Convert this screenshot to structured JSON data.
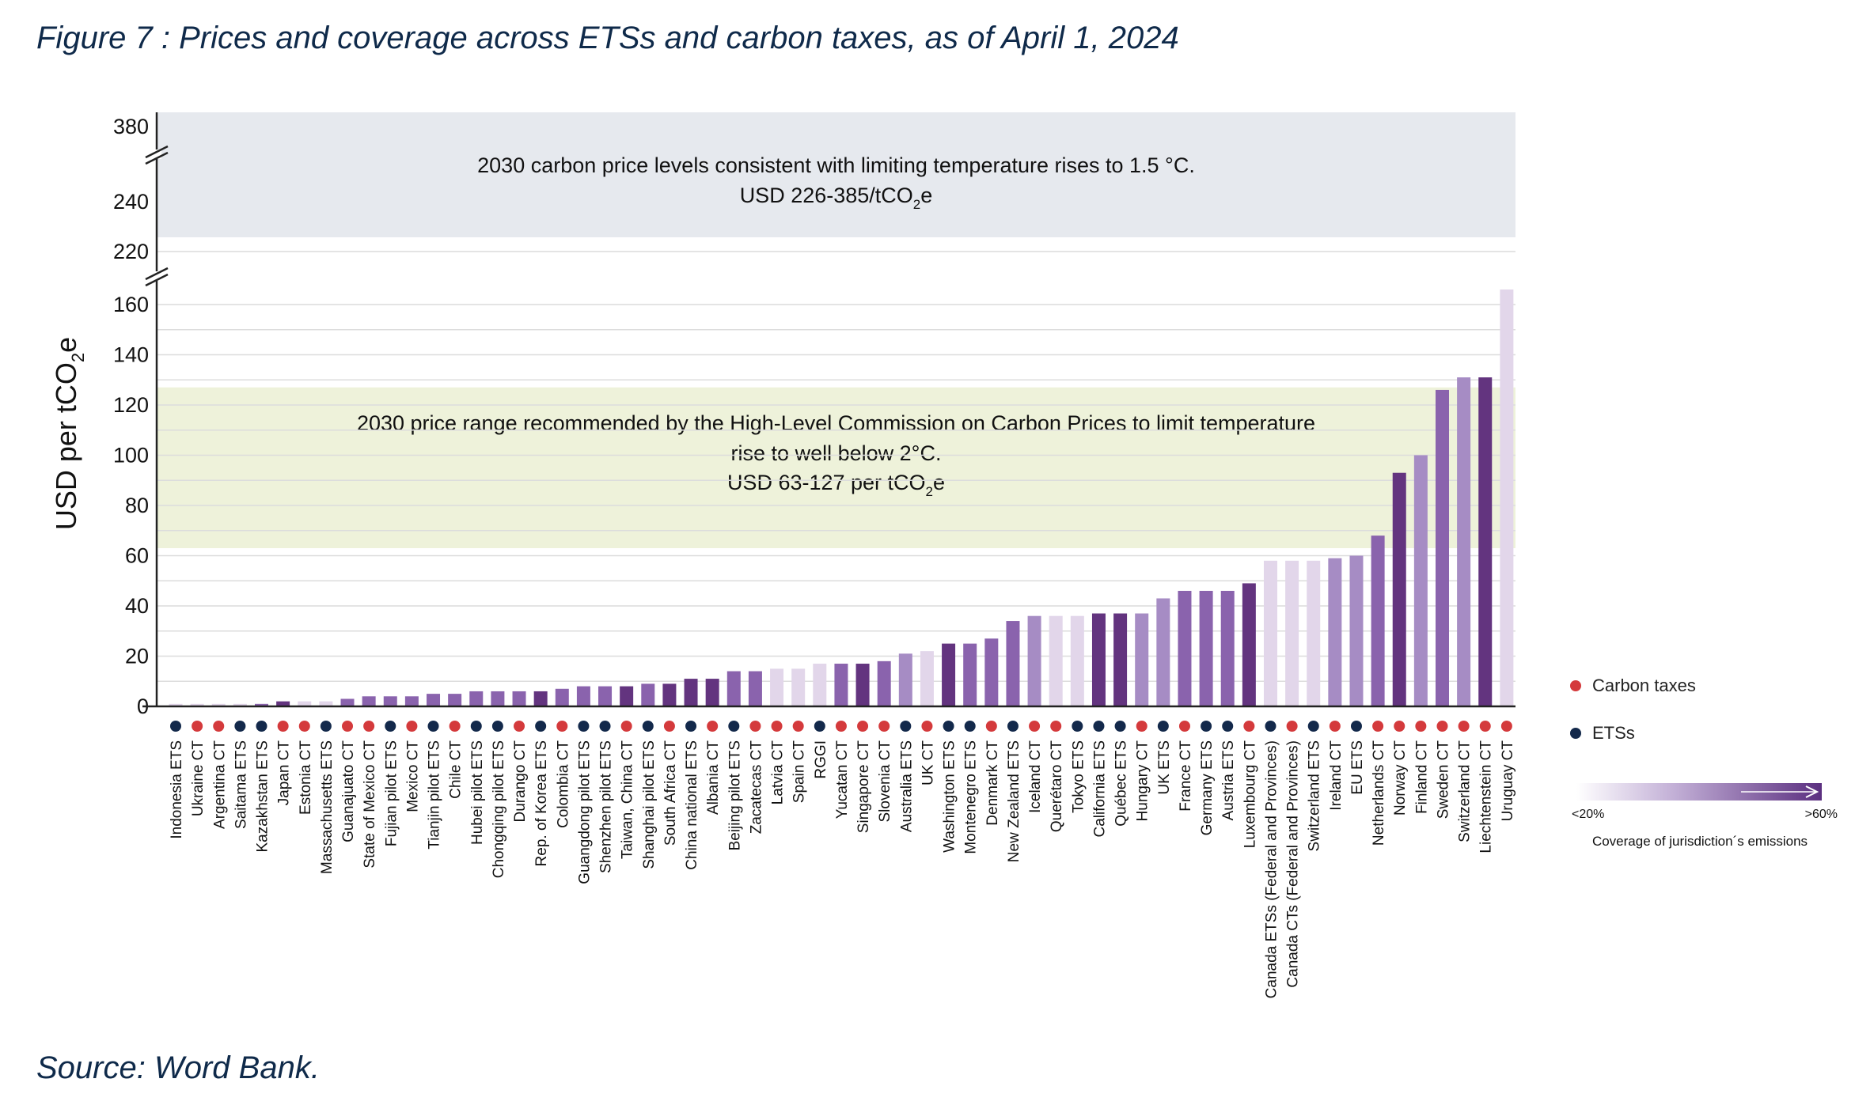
{
  "figure": {
    "title": "Figure 7 : Prices and coverage across ETSs and carbon taxes, as of April 1, 2024",
    "source": "Source: Word Bank."
  },
  "legend": {
    "carbon_taxes": "Carbon taxes",
    "etss": "ETSs",
    "gradient_min": "<20%",
    "gradient_max": ">60%",
    "gradient_caption": "Coverage of jurisdiction´s emissions"
  },
  "colors": {
    "carbon_tax_dot": "#d43a3c",
    "ets_dot": "#13294b",
    "band_top": "#e6e9ee",
    "band_mid": "#eef2da",
    "coverage_low": "#e2d6ea",
    "coverage_mid": "#a68cc4",
    "coverage_high_mid": "#8a63ad",
    "coverage_high": "#63347f"
  },
  "chart_data": {
    "type": "bar",
    "title": "Prices and coverage across ETSs and carbon taxes, as of April 1, 2024",
    "xlabel": "",
    "ylabel": "USD per tCO2e",
    "ylabel_main": "USD per tCO",
    "ylabel_sub": "2",
    "ylabel_tail": "e",
    "ylim": [
      0,
      165
    ],
    "yticks": [
      0,
      20,
      40,
      60,
      80,
      100,
      120,
      140,
      160
    ],
    "upper_ticks": [
      220,
      240,
      380
    ],
    "bands": [
      {
        "name": "1.5C",
        "range": [
          226,
          385
        ],
        "line1": "2030 carbon price levels consistent with limiting temperature rises to 1.5 °C.",
        "line2_main": "USD 226-385/tCO",
        "line2_sub": "2",
        "line2_tail": "e"
      },
      {
        "name": "2C",
        "range": [
          63,
          127
        ],
        "line1": "2030 price range recommended by the High-Level Commission on Carbon Prices to limit temperature",
        "line2": "rise to well below 2°C.",
        "line3_main": "USD 63-127 per tCO",
        "line3_sub": "2",
        "line3_tail": "e"
      }
    ],
    "categories": [
      "Indonesia ETS",
      "Ukraine CT",
      "Argentina CT",
      "Saitama ETS",
      "Kazakhstan ETS",
      "Japan CT",
      "Estonia CT",
      "Massachusetts ETS",
      "Guanajuato CT",
      "State of Mexico CT",
      "Fujian pilot ETS",
      "Mexico CT",
      "Tianjin pilot ETS",
      "Chile CT",
      "Hubei pilot ETS",
      "Chongqing pilot ETS",
      "Durango CT",
      "Rep. of Korea ETS",
      "Colombia CT",
      "Guangdong pilot ETS",
      "Shenzhen pilot ETS",
      "Taiwan, China CT",
      "Shanghai pilot ETS",
      "South Africa CT",
      "China national ETS",
      "Albania CT",
      "Beijing pilot ETS",
      "Zacatecas CT",
      "Latvia CT",
      "Spain CT",
      "RGGI",
      "Yucatan CT",
      "Singapore CT",
      "Slovenia CT",
      "Australia ETS",
      "UK CT",
      "Washington ETS",
      "Montenegro ETS",
      "Denmark CT",
      "New Zealand ETS",
      "Iceland CT",
      "Querétaro CT",
      "Tokyo ETS",
      "California ETS",
      "Québec ETS",
      "Hungary CT",
      "UK ETS",
      "France CT",
      "Germany ETS",
      "Austria ETS",
      "Luxembourg CT",
      "Canada ETSs (Federal and Provinces)",
      "Canada CTs (Federal and Provinces)",
      "Switzerland ETS",
      "Ireland CT",
      "EU ETS",
      "Netherlands CT",
      "Norway CT",
      "Finland CT",
      "Sweden CT",
      "Switzerland CT",
      "Liechtenstein CT",
      "Uruguay CT"
    ],
    "values": [
      1,
      1,
      1,
      1,
      1,
      2,
      2,
      2,
      3,
      4,
      4,
      4,
      5,
      5,
      6,
      6,
      6,
      6,
      7,
      8,
      8,
      8,
      9,
      9,
      11,
      11,
      14,
      14,
      15,
      15,
      17,
      17,
      17,
      18,
      21,
      22,
      25,
      25,
      27,
      34,
      36,
      36,
      36,
      37,
      37,
      37,
      43,
      46,
      46,
      46,
      49,
      58,
      58,
      58,
      59,
      60,
      68,
      93,
      100,
      126,
      131,
      131,
      166
    ],
    "instrument": [
      "ETS",
      "CT",
      "CT",
      "ETS",
      "ETS",
      "CT",
      "CT",
      "ETS",
      "CT",
      "CT",
      "ETS",
      "CT",
      "ETS",
      "CT",
      "ETS",
      "ETS",
      "CT",
      "ETS",
      "CT",
      "ETS",
      "ETS",
      "CT",
      "ETS",
      "CT",
      "ETS",
      "CT",
      "ETS",
      "CT",
      "CT",
      "CT",
      "ETS",
      "CT",
      "CT",
      "CT",
      "ETS",
      "CT",
      "ETS",
      "ETS",
      "CT",
      "ETS",
      "CT",
      "CT",
      "ETS",
      "ETS",
      "ETS",
      "CT",
      "ETS",
      "CT",
      "ETS",
      "ETS",
      "CT",
      "ETS",
      "CT",
      "ETS",
      "CT",
      "ETS",
      "CT",
      "CT",
      "CT",
      "CT",
      "CT",
      "CT",
      "CT"
    ],
    "coverage_level": [
      1,
      1,
      1,
      1,
      3,
      4,
      1,
      1,
      3,
      3,
      3,
      3,
      3,
      3,
      3,
      3,
      3,
      4,
      3,
      3,
      3,
      4,
      3,
      4,
      4,
      4,
      3,
      3,
      1,
      1,
      1,
      3,
      4,
      3,
      2,
      1,
      4,
      3,
      3,
      3,
      2,
      1,
      1,
      4,
      4,
      2,
      2,
      3,
      3,
      3,
      4,
      1,
      1,
      1,
      2,
      2,
      3,
      4,
      2,
      3,
      2,
      4,
      1
    ]
  }
}
